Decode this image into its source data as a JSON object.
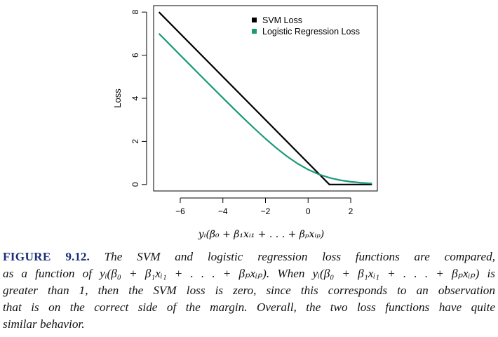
{
  "figure": {
    "caption": {
      "label": "FIGURE",
      "number": "9.12.",
      "lines": [
        " The SVM and logistic regression loss functions are compared,",
        "as a function of yᵢ(β₀ + β₁xᵢ₁ + . . . + βₚxᵢₚ). When yᵢ(β₀ + β₁xᵢ₁ + . . . + βₚxᵢₚ) is",
        "greater than 1, then the SVM loss is zero, since this corresponds to an observation",
        "that is on the correct side of the margin. Overall, the two loss functions have quite",
        "similar behavior."
      ]
    }
  },
  "chart_data": {
    "type": "line",
    "xlabel": "yᵢ(β₀ + β₁xᵢ₁ + . . . + βₚxᵢₚ)",
    "ylabel": "Loss",
    "xlim": [
      -7.25,
      3.25
    ],
    "ylim": [
      -0.3,
      8.3
    ],
    "xticks": [
      -6,
      -4,
      -2,
      0,
      2
    ],
    "yticks": [
      0,
      2,
      4,
      6,
      8
    ],
    "grid": false,
    "legend_position": "top-right",
    "series": [
      {
        "name": "SVM Loss",
        "color": "#000000",
        "x": [
          -7,
          1,
          3
        ],
        "y": [
          8,
          0,
          0
        ]
      },
      {
        "name": "Logistic Regression Loss",
        "color": "#1a9a78",
        "x": [
          -7,
          -6.5,
          -6,
          -5.5,
          -5,
          -4.5,
          -4,
          -3.5,
          -3,
          -2.5,
          -2,
          -1.5,
          -1,
          -0.5,
          0,
          0.5,
          1,
          1.5,
          2,
          2.5,
          3
        ],
        "y": [
          7.001,
          6.502,
          6.002,
          5.504,
          5.007,
          4.511,
          4.018,
          3.53,
          3.049,
          2.579,
          2.127,
          1.701,
          1.313,
          0.974,
          0.693,
          0.474,
          0.313,
          0.201,
          0.127,
          0.079,
          0.049
        ]
      }
    ]
  }
}
